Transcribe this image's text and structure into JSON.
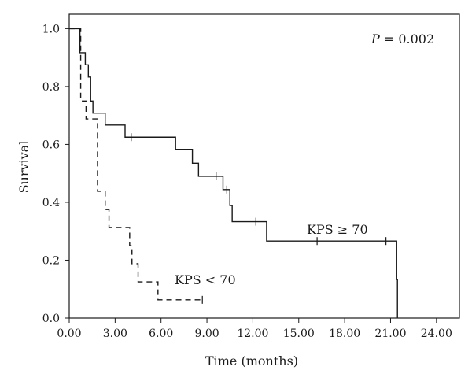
{
  "chart_data": {
    "type": "line",
    "xlabel": "Time (months)",
    "ylabel": "Survival",
    "xlim": [
      0,
      25.5
    ],
    "ylim": [
      0,
      1.05
    ],
    "x_ticks": [
      0,
      3,
      6,
      9,
      12,
      15,
      18,
      21,
      24
    ],
    "x_tick_labels": [
      "0.00",
      "3.00",
      "6.00",
      "9.00",
      "12.00",
      "15.00",
      "18.00",
      "21.00",
      "24.00"
    ],
    "y_ticks": [
      0,
      0.2,
      0.4,
      0.6,
      0.8,
      1.0
    ],
    "y_tick_labels": [
      "0.0",
      "0.2",
      "0.4",
      "0.6",
      "0.8",
      "1.0"
    ],
    "annotation": {
      "p_label": "P",
      "p_value": " = 0.002"
    },
    "series": [
      {
        "name": "KPS ≥ 70",
        "line_style": "solid",
        "steps": [
          [
            0,
            1.0
          ],
          [
            0.7,
            0.917
          ],
          [
            1.05,
            0.875
          ],
          [
            1.25,
            0.833
          ],
          [
            1.4,
            0.75
          ],
          [
            1.55,
            0.708
          ],
          [
            2.35,
            0.667
          ],
          [
            3.65,
            0.625
          ],
          [
            6.95,
            0.583
          ],
          [
            8.05,
            0.535
          ],
          [
            8.45,
            0.49
          ],
          [
            10.05,
            0.444
          ],
          [
            10.5,
            0.389
          ],
          [
            10.65,
            0.333
          ],
          [
            12.9,
            0.266
          ],
          [
            21.4,
            0.133
          ],
          [
            21.45,
            0.0
          ]
        ],
        "censored": [
          [
            4.05,
            0.625
          ],
          [
            9.6,
            0.49
          ],
          [
            10.3,
            0.444
          ],
          [
            12.2,
            0.333
          ],
          [
            16.2,
            0.266
          ],
          [
            20.7,
            0.266
          ]
        ]
      },
      {
        "name": "KPS < 70",
        "line_style": "dashed",
        "steps": [
          [
            0,
            1.0
          ],
          [
            0.75,
            0.75
          ],
          [
            1.1,
            0.688
          ],
          [
            1.85,
            0.438
          ],
          [
            2.35,
            0.375
          ],
          [
            2.6,
            0.313
          ],
          [
            3.95,
            0.25
          ],
          [
            4.1,
            0.188
          ],
          [
            4.5,
            0.125
          ],
          [
            5.8,
            0.063
          ],
          [
            8.7,
            0.063
          ]
        ],
        "censored": [
          [
            8.7,
            0.063
          ]
        ]
      }
    ],
    "labels": [
      {
        "text": "KPS ≥ 70",
        "series": 0
      },
      {
        "text": "KPS < 70",
        "series": 1
      }
    ]
  }
}
